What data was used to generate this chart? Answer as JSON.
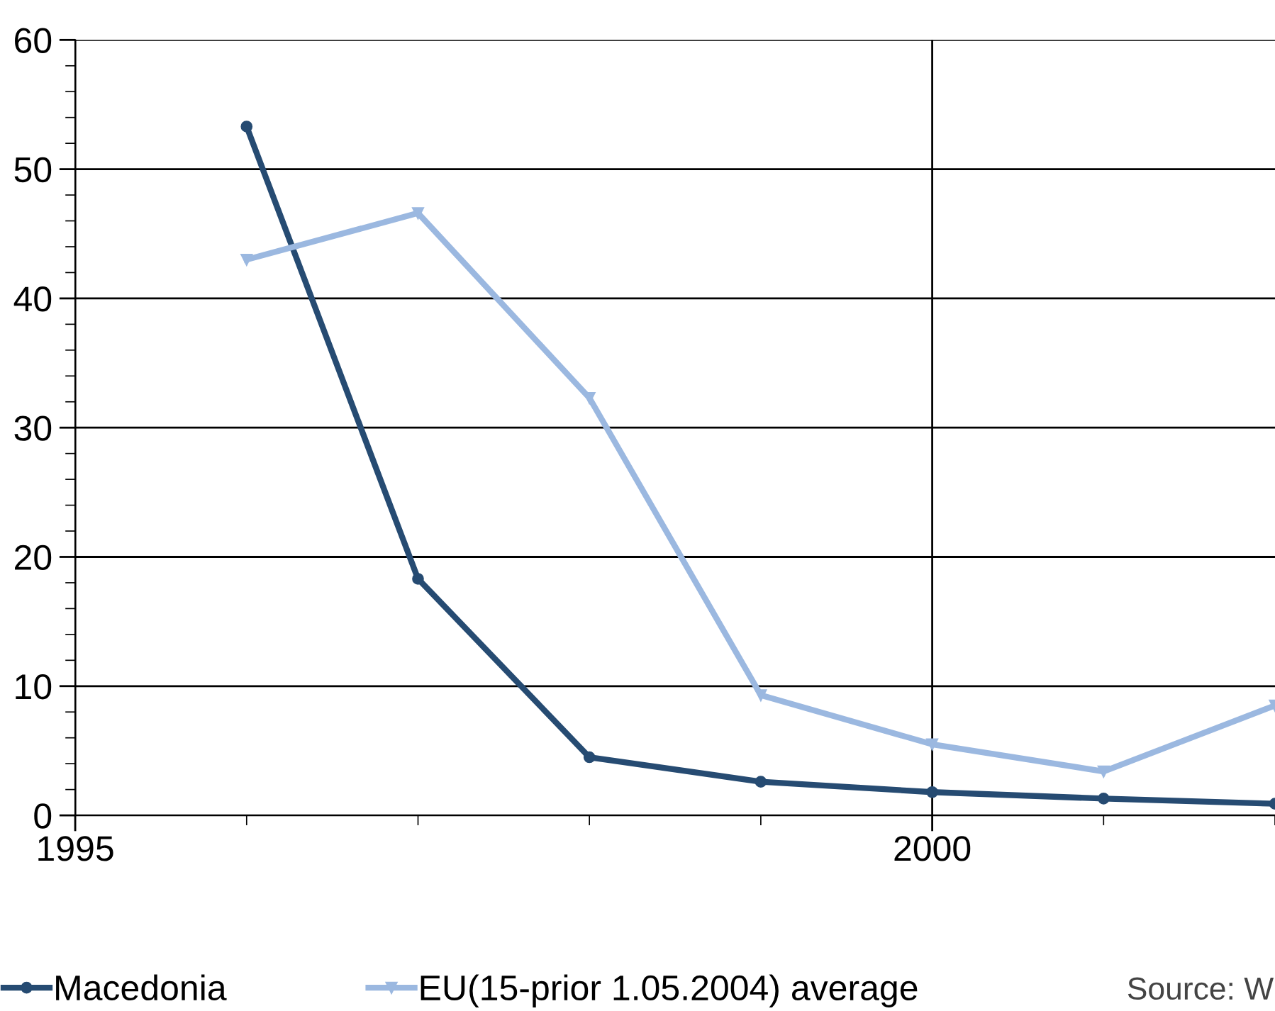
{
  "chart_data": {
    "type": "line",
    "x": [
      1996,
      1997,
      1998,
      1999,
      2000,
      2001,
      2002
    ],
    "series": [
      {
        "name": "Macedonia",
        "color": "#264b72",
        "marker": "circle",
        "values": [
          53.3,
          18.3,
          4.5,
          2.6,
          1.8,
          1.3,
          0.9
        ]
      },
      {
        "name": "EU(15-prior 1.05.2004) average",
        "color": "#9bb8e0",
        "marker": "triangle",
        "values": [
          43.0,
          46.6,
          32.3,
          9.3,
          5.5,
          3.4,
          8.5
        ]
      }
    ],
    "xlim": [
      1995,
      2002
    ],
    "xticks": [
      1995,
      2000
    ],
    "ylim": [
      0,
      60
    ],
    "yticks": [
      0,
      10,
      20,
      30,
      40,
      50,
      60
    ],
    "grid": true,
    "legend": "bottom",
    "line_style": "solid",
    "annotations": [
      "Source: W"
    ]
  }
}
